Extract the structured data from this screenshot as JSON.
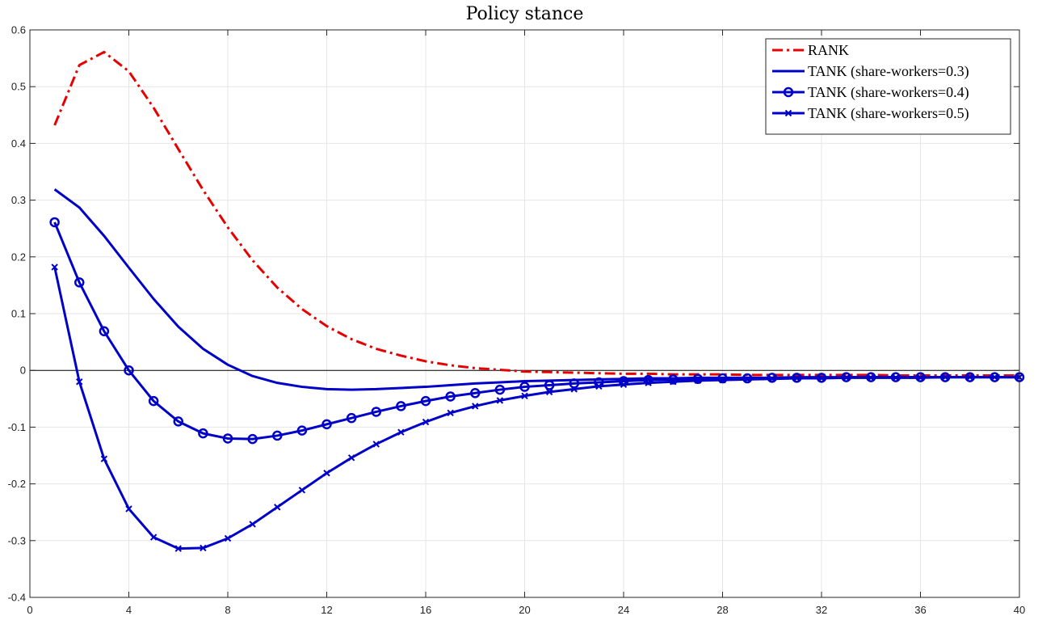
{
  "chart_data": {
    "type": "line",
    "title": "Policy stance",
    "xlabel": "",
    "ylabel": "",
    "xlim": [
      0,
      40
    ],
    "ylim": [
      -0.4,
      0.6
    ],
    "xticks": [
      0,
      4,
      8,
      12,
      16,
      20,
      24,
      28,
      32,
      36,
      40
    ],
    "yticks": [
      -0.4,
      -0.3,
      -0.2,
      -0.1,
      0,
      0.1,
      0.2,
      0.3,
      0.4,
      0.5,
      0.6
    ],
    "grid": true,
    "legend_position": "top-right",
    "zero_line": true,
    "x": [
      1,
      2,
      3,
      4,
      5,
      6,
      7,
      8,
      9,
      10,
      11,
      12,
      13,
      14,
      15,
      16,
      17,
      18,
      19,
      20,
      21,
      22,
      23,
      24,
      25,
      26,
      27,
      28,
      29,
      30,
      31,
      32,
      33,
      34,
      35,
      36,
      37,
      38,
      39,
      40
    ],
    "series": [
      {
        "name": "RANK",
        "color": "#e60000",
        "style": "dashdot",
        "marker": "none",
        "values": [
          0.432,
          0.538,
          0.561,
          0.527,
          0.463,
          0.39,
          0.318,
          0.252,
          0.194,
          0.146,
          0.108,
          0.078,
          0.055,
          0.038,
          0.026,
          0.016,
          0.009,
          0.004,
          0.001,
          -0.002,
          -0.003,
          -0.004,
          -0.005,
          -0.006,
          -0.006,
          -0.007,
          -0.007,
          -0.007,
          -0.008,
          -0.008,
          -0.008,
          -0.008,
          -0.008,
          -0.008,
          -0.009,
          -0.009,
          -0.009,
          -0.009,
          -0.009,
          -0.009
        ]
      },
      {
        "name": "TANK (share-workers=0.3)",
        "color": "#0000c8",
        "style": "solid",
        "marker": "none",
        "values": [
          0.319,
          0.287,
          0.237,
          0.181,
          0.126,
          0.077,
          0.038,
          0.01,
          -0.01,
          -0.022,
          -0.029,
          -0.033,
          -0.034,
          -0.033,
          -0.031,
          -0.029,
          -0.026,
          -0.023,
          -0.021,
          -0.019,
          -0.018,
          -0.017,
          -0.016,
          -0.015,
          -0.014,
          -0.014,
          -0.013,
          -0.013,
          -0.013,
          -0.013,
          -0.012,
          -0.012,
          -0.012,
          -0.012,
          -0.012,
          -0.012,
          -0.012,
          -0.012,
          -0.012,
          -0.012
        ]
      },
      {
        "name": "TANK (share-workers=0.4)",
        "color": "#0000c8",
        "style": "solid",
        "marker": "circle",
        "values": [
          0.261,
          0.155,
          0.069,
          0.0,
          -0.054,
          -0.09,
          -0.111,
          -0.12,
          -0.121,
          -0.115,
          -0.106,
          -0.095,
          -0.084,
          -0.073,
          -0.063,
          -0.054,
          -0.046,
          -0.04,
          -0.034,
          -0.029,
          -0.026,
          -0.023,
          -0.021,
          -0.019,
          -0.017,
          -0.016,
          -0.015,
          -0.014,
          -0.014,
          -0.013,
          -0.013,
          -0.013,
          -0.012,
          -0.012,
          -0.012,
          -0.012,
          -0.012,
          -0.012,
          -0.012,
          -0.012
        ]
      },
      {
        "name": "TANK (share-workers=0.5)",
        "color": "#0000c8",
        "style": "solid",
        "marker": "x",
        "values": [
          0.182,
          -0.02,
          -0.156,
          -0.244,
          -0.294,
          -0.314,
          -0.313,
          -0.296,
          -0.271,
          -0.241,
          -0.211,
          -0.181,
          -0.154,
          -0.13,
          -0.109,
          -0.091,
          -0.075,
          -0.063,
          -0.053,
          -0.045,
          -0.038,
          -0.033,
          -0.028,
          -0.025,
          -0.022,
          -0.02,
          -0.018,
          -0.017,
          -0.016,
          -0.015,
          -0.014,
          -0.014,
          -0.013,
          -0.013,
          -0.013,
          -0.013,
          -0.012,
          -0.012,
          -0.012,
          -0.012
        ]
      }
    ]
  }
}
